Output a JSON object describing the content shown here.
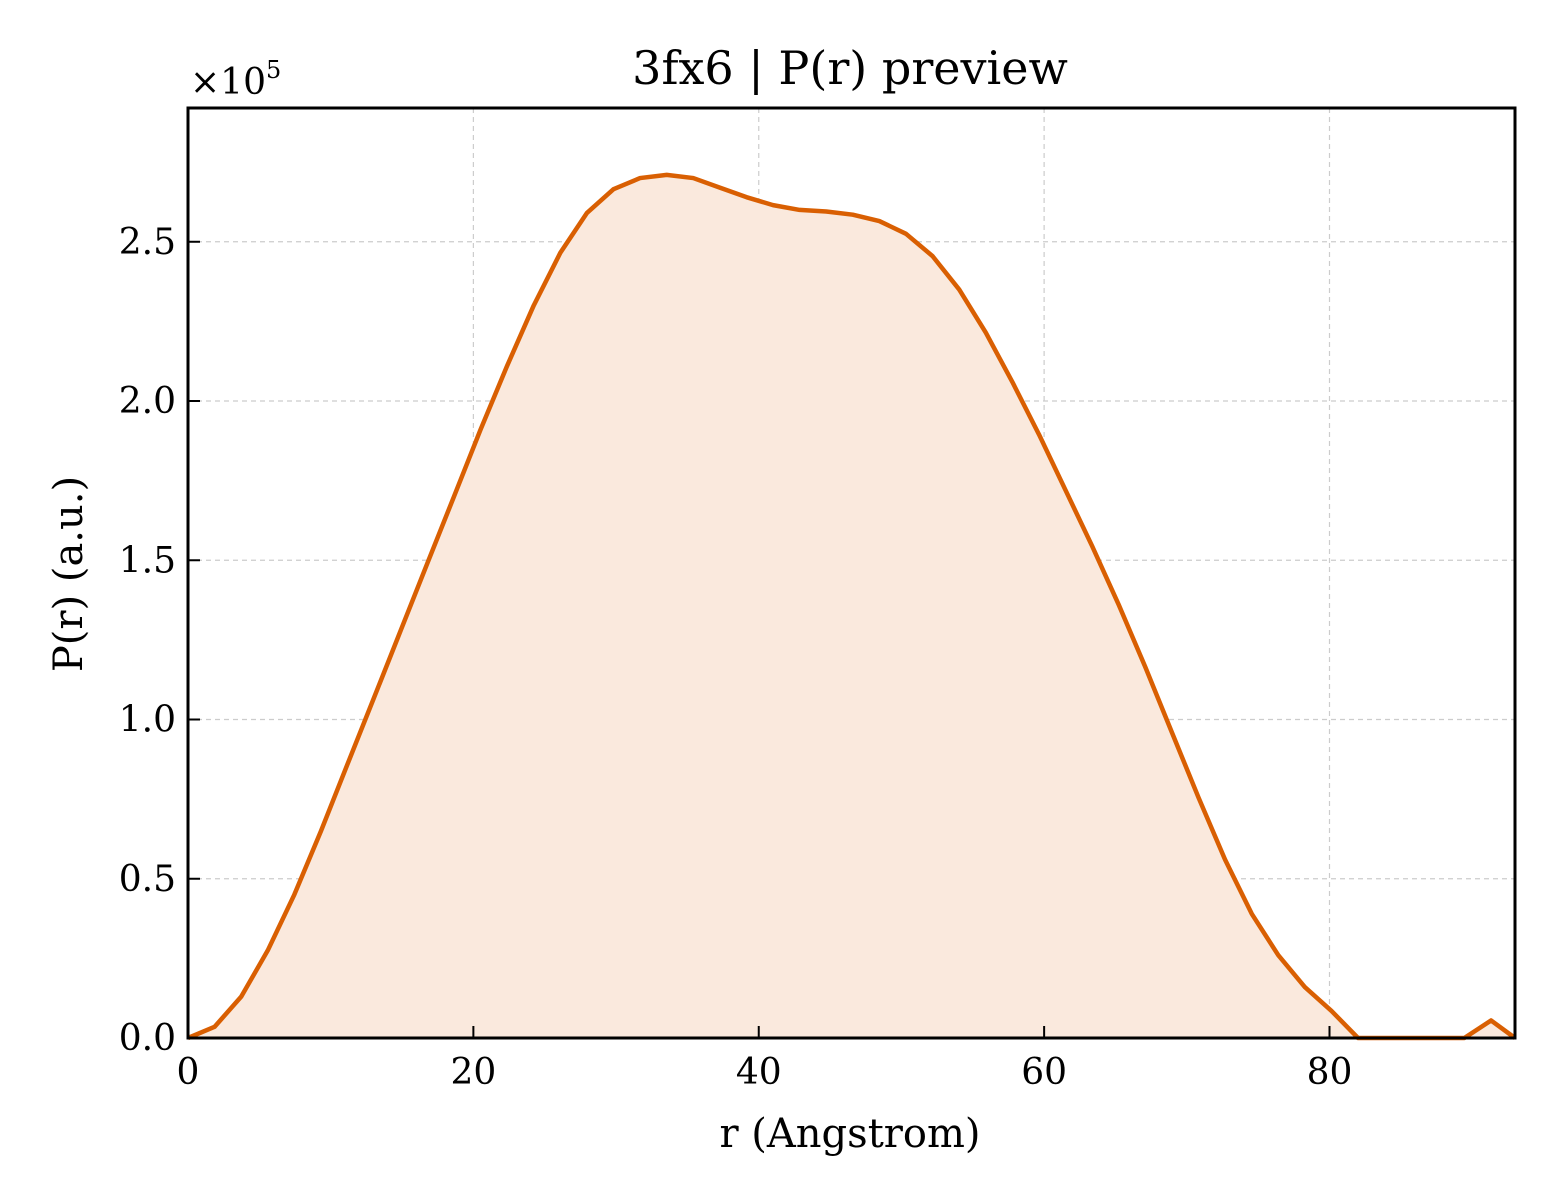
{
  "chart_data": {
    "type": "area",
    "title": "3fx6 | P(r) preview",
    "xlabel": "r (Angstrom)",
    "ylabel": "P(r) (a.u.)",
    "y_multiplier": "×10",
    "y_multiplier_exp": "5",
    "xlim": [
      0,
      93
    ],
    "ylim": [
      0,
      2.92
    ],
    "x_ticks": [
      0,
      20,
      40,
      60,
      80
    ],
    "x_tick_labels": [
      "0",
      "20",
      "40",
      "60",
      "80"
    ],
    "y_ticks": [
      0.0,
      0.5,
      1.0,
      1.5,
      2.0,
      2.5
    ],
    "y_tick_labels": [
      "0.0",
      "0.5",
      "1.0",
      "1.5",
      "2.0",
      "2.5"
    ],
    "grid": true,
    "colors": {
      "line": "#d95f02",
      "fill": "#fae9dd"
    },
    "series": [
      {
        "x": [
          0,
          1.86,
          3.73,
          5.59,
          7.45,
          9.32,
          11.18,
          13.05,
          14.91,
          16.77,
          18.64,
          20.5,
          22.36,
          24.23,
          26.09,
          27.95,
          29.82,
          31.68,
          33.55,
          35.41,
          37.27,
          39.14,
          41.0,
          42.86,
          44.73,
          46.59,
          48.45,
          50.32,
          52.18,
          54.05,
          55.91,
          57.77,
          59.64,
          61.5,
          63.36,
          65.23,
          67.09,
          68.95,
          70.82,
          72.68,
          74.55,
          76.41,
          78.27,
          80.14,
          82.0,
          83.86,
          85.73,
          87.59,
          89.45,
          91.32,
          93.0
        ],
        "values": [
          0.0,
          0.035,
          0.13,
          0.275,
          0.45,
          0.65,
          0.86,
          1.07,
          1.28,
          1.49,
          1.7,
          1.91,
          2.11,
          2.3,
          2.465,
          2.59,
          2.665,
          2.7,
          2.71,
          2.7,
          2.67,
          2.64,
          2.615,
          2.6,
          2.595,
          2.585,
          2.565,
          2.525,
          2.455,
          2.35,
          2.215,
          2.06,
          1.895,
          1.72,
          1.545,
          1.36,
          1.165,
          0.96,
          0.755,
          0.56,
          0.39,
          0.26,
          0.16,
          0.085,
          0.0,
          0.0,
          0.0,
          0.0,
          0.0,
          0.055,
          0.0
        ]
      }
    ]
  }
}
